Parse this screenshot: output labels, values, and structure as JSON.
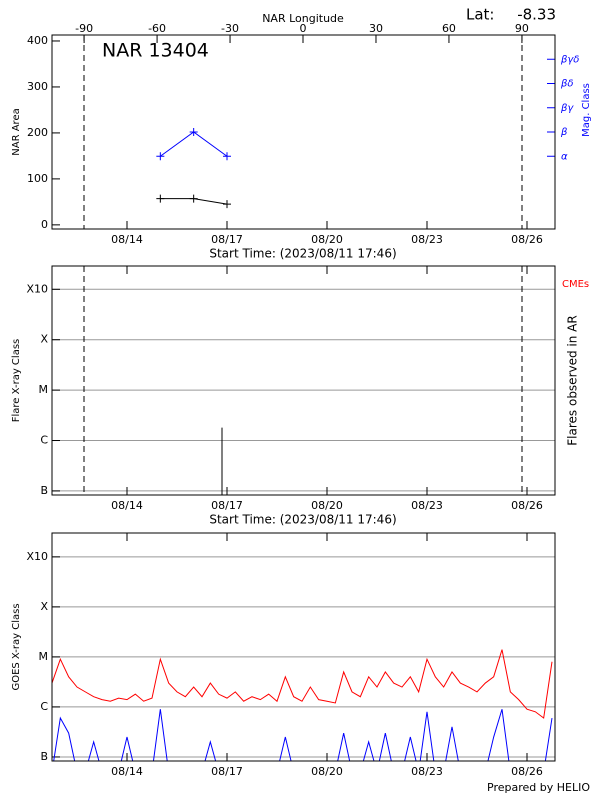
{
  "chart_data": [
    {
      "type": "line",
      "title": "NAR 13404",
      "lat_label": "Lat:",
      "lat": -8.33,
      "x_label": "Start Time: (2023/08/11 17:46)",
      "x2_label": "NAR Longitude",
      "y_label": "NAR Area",
      "y2_label": "Mag. Class",
      "xlim": [
        11.75,
        26.84
      ],
      "xticks": [
        {
          "value": 14,
          "label": "08/14"
        },
        {
          "value": 17,
          "label": "08/17"
        },
        {
          "value": 20,
          "label": "08/20"
        },
        {
          "value": 23,
          "label": "08/23"
        },
        {
          "value": 26,
          "label": "08/26"
        }
      ],
      "x2lim": [
        -103.2,
        103.6
      ],
      "x2ticks": [
        -90,
        -60,
        -30,
        0,
        30,
        60,
        90
      ],
      "ylim": [
        -9,
        413
      ],
      "yticks": [
        0,
        100,
        200,
        300,
        400
      ],
      "y2lim": [
        -2,
        6
      ],
      "y2ticks": [
        {
          "value": 1,
          "label": "α"
        },
        {
          "value": 2,
          "label": "β"
        },
        {
          "value": 3,
          "label": "βγ"
        },
        {
          "value": 4,
          "label": "βδ"
        },
        {
          "value": 5,
          "label": "βγδ"
        }
      ],
      "limb": [
        12.71,
        25.85
      ],
      "log_scale": false,
      "grid": false,
      "series": [
        {
          "color": "#000000",
          "marker": "+",
          "x": [
            15,
            16,
            17
          ],
          "values": [
            57,
            57,
            45
          ]
        },
        {
          "color": "#0000ff",
          "marker": "+",
          "axis": "y2",
          "x": [
            15,
            16,
            17
          ],
          "values": [
            1,
            2,
            1
          ]
        }
      ]
    },
    {
      "type": "stem",
      "x_label": "Start Time: (2023/08/11 17:46)",
      "y_label": "Flare X-ray Class",
      "y2_label": "Flares observed in AR",
      "cme_label": "CMEs",
      "cme_color": "#ff0000",
      "xlim": [
        11.75,
        26.84
      ],
      "xticks": [
        {
          "value": 14,
          "label": "08/14"
        },
        {
          "value": 17,
          "label": "08/17"
        },
        {
          "value": 20,
          "label": "08/20"
        },
        {
          "value": 23,
          "label": "08/23"
        },
        {
          "value": 26,
          "label": "08/26"
        }
      ],
      "ylim": [
        8.3e-08,
        0.0029
      ],
      "yticks": [
        {
          "value": 1e-07,
          "label": "B"
        },
        {
          "value": 1e-06,
          "label": "C"
        },
        {
          "value": 1e-05,
          "label": "M"
        },
        {
          "value": 0.0001,
          "label": "X"
        },
        {
          "value": 0.001,
          "label": "X10"
        }
      ],
      "limb": [
        12.71,
        25.85
      ],
      "log_scale": true,
      "grid": true,
      "series": [
        {
          "color": "#000000",
          "x": [
            16.85
          ],
          "values": [
            1.8e-06
          ]
        }
      ]
    },
    {
      "type": "line",
      "y_label": "GOES X-ray Class",
      "xlim": [
        11.75,
        26.84
      ],
      "xticks": [
        {
          "value": 14,
          "label": "08/14"
        },
        {
          "value": 17,
          "label": "08/17"
        },
        {
          "value": 20,
          "label": "08/20"
        },
        {
          "value": 23,
          "label": "08/23"
        },
        {
          "value": 26,
          "label": "08/26"
        }
      ],
      "ylim": [
        8.3e-08,
        0.003
      ],
      "yticks": [
        {
          "value": 1e-07,
          "label": "B"
        },
        {
          "value": 1e-06,
          "label": "C"
        },
        {
          "value": 1e-05,
          "label": "M"
        },
        {
          "value": 0.0001,
          "label": "X"
        },
        {
          "value": 0.001,
          "label": "X10"
        }
      ],
      "log_scale": true,
      "grid": true,
      "series": [
        {
          "color": "#ff0000",
          "x": [
            11.75,
            12,
            12.25,
            12.5,
            12.75,
            13,
            13.25,
            13.5,
            13.75,
            14,
            14.25,
            14.5,
            14.75,
            15,
            15.25,
            15.5,
            15.75,
            16,
            16.25,
            16.5,
            16.75,
            17,
            17.25,
            17.5,
            17.75,
            18,
            18.25,
            18.5,
            18.75,
            19,
            19.25,
            19.5,
            19.75,
            20,
            20.25,
            20.5,
            20.75,
            21,
            21.25,
            21.5,
            21.75,
            22,
            22.25,
            22.5,
            22.75,
            23,
            23.25,
            23.5,
            23.75,
            24,
            24.25,
            24.5,
            24.75,
            25,
            25.25,
            25.5,
            25.75,
            26,
            26.25,
            26.5,
            26.75
          ],
          "values": [
            3e-06,
            9e-06,
            4e-06,
            2.5e-06,
            2e-06,
            1.6e-06,
            1.4e-06,
            1.3e-06,
            1.5e-06,
            1.4e-06,
            1.8e-06,
            1.3e-06,
            1.5e-06,
            9e-06,
            3e-06,
            2e-06,
            1.6e-06,
            2.5e-06,
            1.6e-06,
            3e-06,
            1.8e-06,
            1.5e-06,
            2e-06,
            1.3e-06,
            1.6e-06,
            1.4e-06,
            1.8e-06,
            1.3e-06,
            4e-06,
            1.6e-06,
            1.3e-06,
            2.5e-06,
            1.4e-06,
            1.3e-06,
            1.2e-06,
            5e-06,
            2e-06,
            1.6e-06,
            4e-06,
            2.5e-06,
            5e-06,
            3e-06,
            2.5e-06,
            4e-06,
            2e-06,
            9e-06,
            4e-06,
            2.5e-06,
            5e-06,
            3e-06,
            2.5e-06,
            2e-06,
            3e-06,
            4e-06,
            1.4e-05,
            2e-06,
            1.4e-06,
            9e-07,
            8e-07,
            6e-07,
            8e-06
          ]
        },
        {
          "color": "#0000ff",
          "x": [
            11.75,
            12,
            12.25,
            12.5,
            12.75,
            13,
            13.25,
            13.5,
            13.75,
            14,
            14.25,
            14.5,
            14.75,
            15,
            15.25,
            15.5,
            15.75,
            16,
            16.25,
            16.5,
            16.75,
            17,
            17.25,
            17.5,
            17.75,
            18,
            18.25,
            18.5,
            18.75,
            19,
            19.25,
            19.5,
            19.75,
            20,
            20.25,
            20.5,
            20.75,
            21,
            21.25,
            21.5,
            21.75,
            22,
            22.25,
            22.5,
            22.75,
            23,
            23.25,
            23.5,
            23.75,
            24,
            24.25,
            24.5,
            24.75,
            25,
            25.25,
            25.5,
            25.75,
            26,
            26.25,
            26.5,
            26.75
          ],
          "values": [
            5e-08,
            6e-07,
            3e-07,
            5e-08,
            5e-08,
            2e-07,
            5e-08,
            5e-08,
            5e-08,
            2.5e-07,
            5e-08,
            5e-08,
            5e-08,
            9e-07,
            5e-08,
            5e-08,
            5e-08,
            5e-08,
            5e-08,
            2e-07,
            5e-08,
            5e-08,
            5e-08,
            5e-08,
            5e-08,
            5e-08,
            5e-08,
            5e-08,
            2.5e-07,
            5e-08,
            5e-08,
            5e-08,
            5e-08,
            5e-08,
            5e-08,
            3e-07,
            5e-08,
            5e-08,
            2e-07,
            5e-08,
            3e-07,
            5e-08,
            5e-08,
            2.5e-07,
            5e-08,
            8e-07,
            5e-08,
            5e-08,
            4e-07,
            5e-08,
            5e-08,
            5e-08,
            5e-08,
            2.5e-07,
            9e-07,
            5e-08,
            5e-08,
            5e-08,
            5e-08,
            5e-08,
            6e-07
          ]
        }
      ]
    }
  ],
  "footer": "Prepared by HELIO"
}
